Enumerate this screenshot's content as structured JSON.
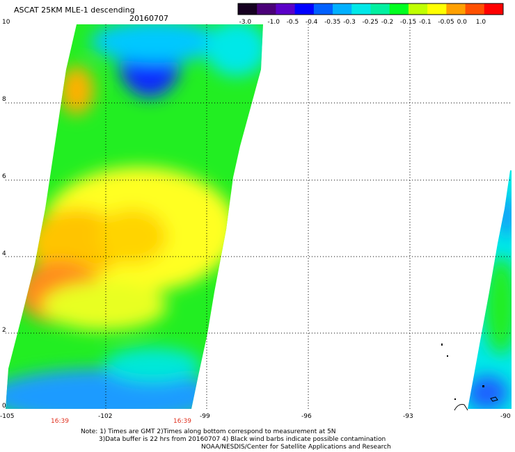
{
  "header": {
    "title": "ASCAT 25KM MLE-1 descending",
    "date": "20160707"
  },
  "colorbar": {
    "labels": [
      "-3.0",
      "-1.0",
      "-0.5",
      "-0.4",
      "-0.35",
      "-0.3",
      "-0.25",
      "-0.2",
      "-0.15",
      "-0.1",
      "-0.05",
      "0.0",
      "1.0"
    ],
    "colors": [
      "#160020",
      "#4a0078",
      "#5a00c8",
      "#0000ff",
      "#0060ff",
      "#00b0ff",
      "#00e8e8",
      "#00f0a0",
      "#00ff20",
      "#c0ff00",
      "#ffff00",
      "#ffa000",
      "#ff5000",
      "#ff0000"
    ]
  },
  "axes": {
    "y_ticks": [
      "10",
      "8",
      "6",
      "4",
      "2",
      "0"
    ],
    "x_ticks": [
      "-105",
      "-102",
      "-99",
      "-96",
      "-93",
      "-90"
    ],
    "times": [
      "16:39",
      "16:39"
    ]
  },
  "notes": {
    "line1": "Note: 1) Times are GMT 2)Times along bottom correspond to measurement at 5N",
    "line2": "3)Data buffer is 22 hrs from 20160707 4) Black wind barbs indicate possible contamination",
    "line3": "NOAA/NESDIS/Center for Satellite Applications and Research"
  },
  "palette": {
    "blue": "#1e90ff",
    "cyan": "#00e8f0",
    "green": "#22ee22",
    "yellow": "#ffff22",
    "orange": "#ff8c1a"
  }
}
